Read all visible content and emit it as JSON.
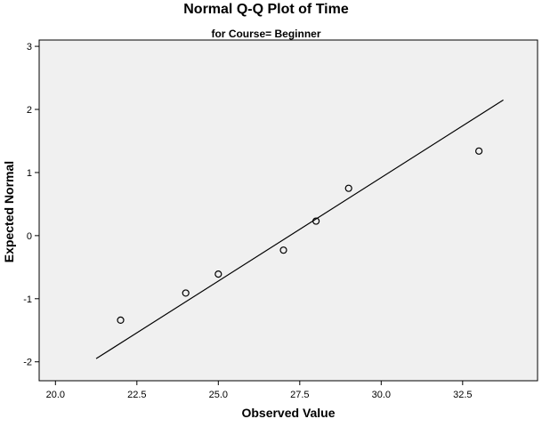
{
  "chart_data": {
    "type": "scatter",
    "title": "Normal Q-Q Plot of Time",
    "subtitle": "for Course= Beginner",
    "xlabel": "Observed Value",
    "ylabel": "Expected Normal",
    "xlim": [
      19.5,
      34.8
    ],
    "ylim": [
      -2.3,
      3.1
    ],
    "xticks": [
      20.0,
      22.5,
      25.0,
      27.5,
      30.0,
      32.5
    ],
    "xtick_labels": [
      "20.0",
      "22.5",
      "25.0",
      "27.5",
      "30.0",
      "32.5"
    ],
    "yticks": [
      -2,
      -1,
      0,
      1,
      2,
      3
    ],
    "ytick_labels": [
      "-2",
      "-1",
      "0",
      "1",
      "2",
      "3"
    ],
    "grid": false,
    "points": [
      {
        "x": 22,
        "y": -1.34
      },
      {
        "x": 24,
        "y": -0.91
      },
      {
        "x": 25,
        "y": -0.61
      },
      {
        "x": 27,
        "y": -0.23
      },
      {
        "x": 28,
        "y": 0.23
      },
      {
        "x": 29,
        "y": 0.75
      },
      {
        "x": 33,
        "y": 1.34
      }
    ],
    "reference_line": {
      "x": [
        21.25,
        33.75
      ],
      "y": [
        -1.95,
        2.15
      ]
    },
    "colors": {
      "plot_background": "#f0f0f0",
      "axis": "#000000",
      "marker": "#000000",
      "line": "#000000"
    }
  }
}
